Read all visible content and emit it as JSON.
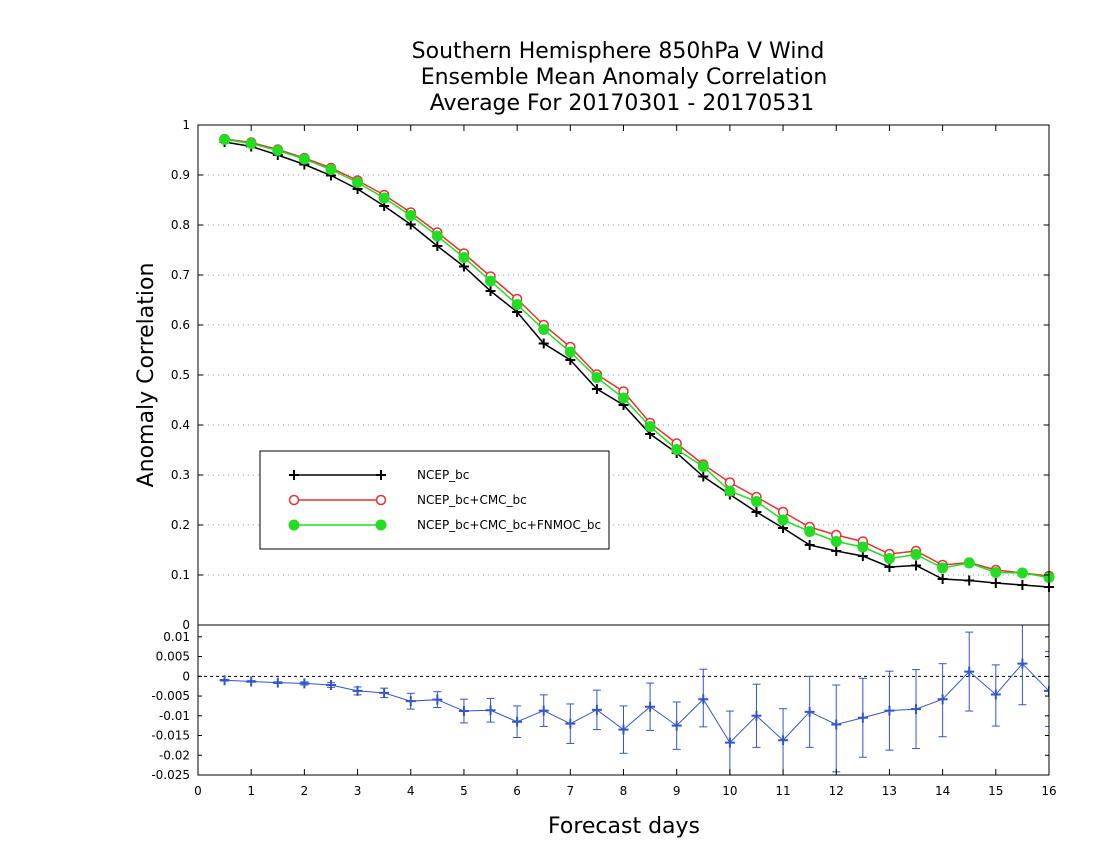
{
  "chart_data": [
    {
      "type": "line",
      "title": [
        "Southern Hemisphere 850hPa V Wind",
        "Ensemble Mean Anomaly Correlation",
        "Average For 20170301 - 20170531"
      ],
      "xlabel": "Forecast days",
      "ylabel": "Anomaly Correlation",
      "xlim": [
        0,
        16
      ],
      "ylim": [
        0,
        1
      ],
      "x_ticks": [
        "0",
        "1",
        "2",
        "3",
        "4",
        "5",
        "6",
        "7",
        "8",
        "9",
        "10",
        "11",
        "12",
        "13",
        "14",
        "15",
        "16"
      ],
      "y_ticks": [
        "0",
        "0.1",
        "0.2",
        "0.3",
        "0.4",
        "0.5",
        "0.6",
        "0.7",
        "0.8",
        "0.9",
        "1"
      ],
      "grid": "horizontal dotted",
      "legend_position": "lower-left",
      "x": [
        0.5,
        1,
        1.5,
        2,
        2.5,
        3,
        3.5,
        4,
        4.5,
        5,
        5.5,
        6,
        6.5,
        7,
        7.5,
        8,
        8.5,
        9,
        9.5,
        10,
        10.5,
        11,
        11.5,
        12,
        12.5,
        13,
        13.5,
        14,
        14.5,
        15,
        15.5,
        16
      ],
      "series": [
        {
          "name": "NCEP_bc",
          "color": "#000000",
          "marker": "plus",
          "values": [
            0.966,
            0.957,
            0.94,
            0.921,
            0.899,
            0.872,
            0.838,
            0.801,
            0.758,
            0.717,
            0.668,
            0.626,
            0.563,
            0.53,
            0.472,
            0.44,
            0.382,
            0.344,
            0.297,
            0.261,
            0.226,
            0.194,
            0.16,
            0.148,
            0.138,
            0.116,
            0.119,
            0.092,
            0.089,
            0.084,
            0.08,
            0.076
          ]
        },
        {
          "name": "NCEP_bc+CMC_bc",
          "color": "#e83030",
          "marker": "open-circle",
          "values": [
            0.972,
            0.965,
            0.951,
            0.934,
            0.914,
            0.889,
            0.86,
            0.825,
            0.785,
            0.743,
            0.697,
            0.652,
            0.6,
            0.556,
            0.501,
            0.467,
            0.404,
            0.363,
            0.321,
            0.285,
            0.256,
            0.226,
            0.196,
            0.18,
            0.167,
            0.142,
            0.148,
            0.12,
            0.125,
            0.11,
            0.104,
            0.098
          ]
        },
        {
          "name": "NCEP_bc+CMC_bc+FNMOC_bc",
          "color": "#22dd22",
          "marker": "filled-circle",
          "values": [
            0.971,
            0.963,
            0.949,
            0.932,
            0.911,
            0.885,
            0.854,
            0.819,
            0.778,
            0.735,
            0.688,
            0.641,
            0.591,
            0.546,
            0.495,
            0.454,
            0.397,
            0.351,
            0.317,
            0.268,
            0.247,
            0.21,
            0.187,
            0.167,
            0.156,
            0.133,
            0.141,
            0.114,
            0.124,
            0.105,
            0.104,
            0.095
          ]
        }
      ]
    },
    {
      "type": "line",
      "xlim": [
        0,
        16
      ],
      "ylim": [
        -0.025,
        0.013
      ],
      "y_ticks": [
        "0.01",
        "0.005",
        "0",
        "-0.005",
        "-0.01",
        "-0.015",
        "-0.02",
        "-0.025"
      ],
      "reference_line": 0,
      "series": [
        {
          "name": "difference",
          "color": "#3355cc",
          "marker": "plus",
          "x": [
            0.5,
            1,
            1.5,
            2,
            2.5,
            3,
            3.5,
            4,
            4.5,
            5,
            5.5,
            6,
            6.5,
            7,
            7.5,
            8,
            8.5,
            9,
            9.5,
            10,
            10.5,
            11,
            11.5,
            12,
            12.5,
            13,
            13.5,
            14,
            14.5,
            15,
            15.5,
            16
          ],
          "values": [
            -0.001,
            -0.0013,
            -0.0016,
            -0.0018,
            -0.0022,
            -0.0037,
            -0.0042,
            -0.0063,
            -0.0059,
            -0.0088,
            -0.0086,
            -0.0115,
            -0.0087,
            -0.012,
            -0.0085,
            -0.0135,
            -0.0077,
            -0.0125,
            -0.0058,
            -0.0168,
            -0.01,
            -0.0162,
            -0.009,
            -0.0122,
            -0.0105,
            -0.0087,
            -0.0083,
            -0.0058,
            0.0012,
            -0.0046,
            0.0032,
            -0.0037
          ],
          "error_low": [
            -0.0012,
            -0.0015,
            -0.0018,
            -0.0022,
            -0.0028,
            -0.0047,
            -0.0054,
            -0.0083,
            -0.0079,
            -0.0118,
            -0.0116,
            -0.0155,
            -0.0127,
            -0.017,
            -0.0135,
            -0.0195,
            -0.0137,
            -0.0185,
            -0.0128,
            -0.0268,
            -0.018,
            -0.0262,
            -0.018,
            -0.0242,
            -0.0205,
            -0.0187,
            -0.0183,
            -0.0153,
            -0.0088,
            -0.0126,
            -0.0072,
            -0.0127
          ],
          "error_high": [
            -0.0008,
            -0.0011,
            -0.0014,
            -0.0014,
            -0.0016,
            -0.0027,
            -0.003,
            -0.0043,
            -0.0039,
            -0.0058,
            -0.0056,
            -0.0075,
            -0.0047,
            -0.007,
            -0.0035,
            -0.0075,
            -0.0017,
            -0.0065,
            0.0018,
            -0.0088,
            -0.002,
            -0.0082,
            0.0,
            -0.0022,
            -0.0005,
            0.0013,
            0.0017,
            0.0032,
            0.0112,
            0.0029,
            0.0132,
            0.0063
          ]
        }
      ]
    }
  ]
}
